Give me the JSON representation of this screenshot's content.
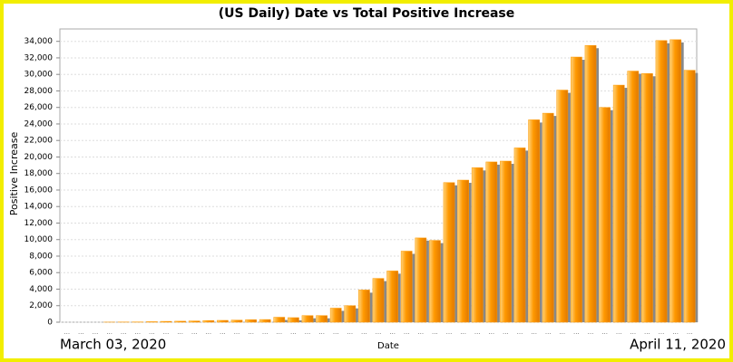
{
  "chart_data": {
    "type": "bar",
    "title": "(US Daily) Date vs Total Positive Increase",
    "x_label": "Date",
    "y_label": "Positive Increase",
    "start_label": "March 03, 2020",
    "end_label": "April 11, 2020",
    "categories": [
      "...",
      "...",
      "...",
      "...",
      "...",
      "...",
      "...",
      "...",
      "...",
      "...",
      "...",
      "...",
      "...",
      "...",
      "...",
      "...",
      "...",
      "...",
      "...",
      "...",
      "...",
      "...",
      "...",
      "...",
      "...",
      "...",
      "...",
      "...",
      "...",
      "...",
      "...",
      "...",
      "...",
      "...",
      "...",
      "...",
      "...",
      "...",
      "...",
      "...",
      "...",
      "...",
      "...",
      "...",
      "..."
    ],
    "values": [
      0,
      0,
      0,
      10,
      20,
      30,
      60,
      100,
      120,
      150,
      200,
      220,
      250,
      300,
      320,
      600,
      550,
      800,
      800,
      1700,
      2000,
      3900,
      5300,
      6200,
      8600,
      10200,
      9900,
      16900,
      17200,
      18700,
      19400,
      19500,
      21100,
      24500,
      25300,
      28100,
      32100,
      33500,
      26000,
      28700,
      30400,
      30100,
      34100,
      34200,
      30500
    ],
    "color": "#ff9900",
    "ylim": [
      0,
      35500
    ],
    "yticks": [
      0,
      {
        "value": 2000,
        "label": "2,000"
      },
      {
        "value": 4000,
        "label": "4,000"
      },
      {
        "value": 6000,
        "label": "6,000"
      },
      {
        "value": 8000,
        "label": "8,000"
      },
      {
        "value": 10000,
        "label": "10,000"
      },
      {
        "value": 12000,
        "label": "12,000"
      },
      {
        "value": 14000,
        "label": "14,000"
      },
      {
        "value": 16000,
        "label": "16,000"
      },
      {
        "value": 18000,
        "label": "18,000"
      },
      {
        "value": 20000,
        "label": "20,000"
      },
      {
        "value": 22000,
        "label": "22,000"
      },
      {
        "value": 24000,
        "label": "24,000"
      },
      {
        "value": 26000,
        "label": "26,000"
      },
      {
        "value": 28000,
        "label": "28,000"
      },
      {
        "value": 30000,
        "label": "30,000"
      },
      {
        "value": 32000,
        "label": "32,000"
      },
      {
        "value": 34000,
        "label": "34,000"
      }
    ],
    "grid": true
  }
}
